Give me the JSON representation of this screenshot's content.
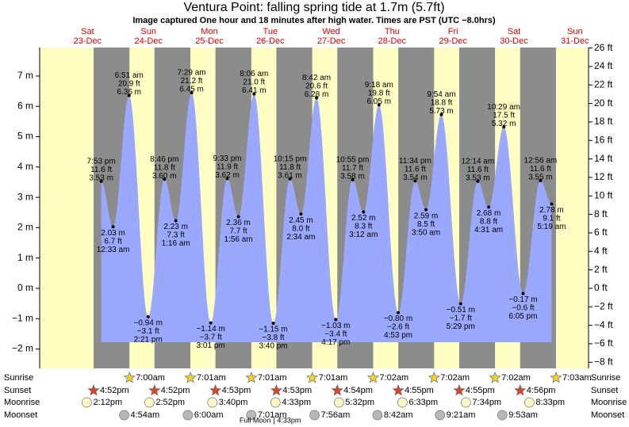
{
  "chart_data": {
    "type": "tide",
    "title": "Ventura Point: falling  spring tide at 1.7m (5.7ft)",
    "subtitle": "Image captured One hour and 18 minutes after high water. Times are PST (UTC −8.0hrs)",
    "ylim": [
      -2.64,
      7.94
    ],
    "yticks": [
      {
        "value": -2,
        "label": "−2 m"
      },
      {
        "value": -1,
        "label": "−1 m"
      },
      {
        "value": 0,
        "label": "0 m"
      },
      {
        "value": 1,
        "label": "1 m"
      },
      {
        "value": 2,
        "label": "2 m"
      },
      {
        "value": 3,
        "label": "3 m"
      },
      {
        "value": 4,
        "label": "4 m"
      },
      {
        "value": 5,
        "label": "5 m"
      },
      {
        "value": 6,
        "label": "6 m"
      },
      {
        "value": 7,
        "label": "7 m"
      }
    ],
    "y2lim": [
      -8.66,
      26.05
    ],
    "y2ticks": [
      {
        "value": -8,
        "label": "−8 ft"
      },
      {
        "value": -6,
        "label": "−6 ft"
      },
      {
        "value": -4,
        "label": "−4 ft"
      },
      {
        "value": -2,
        "label": "−2 ft"
      },
      {
        "value": 0,
        "label": "0 ft"
      },
      {
        "value": 2,
        "label": "2 ft"
      },
      {
        "value": 4,
        "label": "4 ft"
      },
      {
        "value": 6,
        "label": "6 ft"
      },
      {
        "value": 8,
        "label": "8 ft"
      },
      {
        "value": 10,
        "label": "10 ft"
      },
      {
        "value": 12,
        "label": "12 ft"
      },
      {
        "value": 14,
        "label": "14 ft"
      },
      {
        "value": 16,
        "label": "16 ft"
      },
      {
        "value": 18,
        "label": "18 ft"
      },
      {
        "value": 20,
        "label": "20 ft"
      },
      {
        "value": 22,
        "label": "22 ft"
      },
      {
        "value": 24,
        "label": "24 ft"
      },
      {
        "value": 26,
        "label": "26 ft"
      }
    ],
    "rows": [
      "Sunrise",
      "Sunset",
      "Moonrise",
      "Moonset"
    ],
    "days": [
      {
        "weekday": "Sat",
        "date": "23‑Dec",
        "tides": [
          {
            "time": "7:53 pm",
            "value": 3.53,
            "ft": "11.6 ft",
            "m": "3.53 m"
          }
        ],
        "sunrise": null,
        "sunset": "4:52pm",
        "moonrise": "2:12pm",
        "moonset": null
      },
      {
        "weekday": "Sun",
        "date": "24‑Dec",
        "tides": [
          {
            "time": "12:33 am",
            "value": 2.03,
            "ft": "6.7 ft",
            "m": "2.03 m"
          },
          {
            "time": "6:51 am",
            "value": 6.36,
            "ft": "20.9 ft",
            "m": "6.36 m"
          },
          {
            "time": "2:21 pm",
            "value": -0.94,
            "ft": "−3.1 ft",
            "m": "−0.94 m"
          },
          {
            "time": "8:46 pm",
            "value": 3.6,
            "ft": "11.8 ft",
            "m": "3.60 m"
          }
        ],
        "sunrise": "7:00am",
        "sunset": "4:52pm",
        "moonrise": "2:52pm",
        "moonset": "4:54am"
      },
      {
        "weekday": "Mon",
        "date": "25‑Dec",
        "tides": [
          {
            "time": "1:16 am",
            "value": 2.23,
            "ft": "7.3 ft",
            "m": "2.23 m"
          },
          {
            "time": "7:29 am",
            "value": 6.45,
            "ft": "21.2 ft",
            "m": "6.45 m"
          },
          {
            "time": "3:01 pm",
            "value": -1.14,
            "ft": "−3.7 ft",
            "m": "−1.14 m"
          },
          {
            "time": "9:33 pm",
            "value": 3.62,
            "ft": "11.9 ft",
            "m": "3.62 m"
          }
        ],
        "sunrise": "7:01am",
        "sunset": "4:53pm",
        "moonrise": "3:40pm",
        "moonset": "6:00am"
      },
      {
        "weekday": "Tue",
        "date": "26‑Dec",
        "tides": [
          {
            "time": "1:56 am",
            "value": 2.36,
            "ft": "7.7 ft",
            "m": "2.36 m"
          },
          {
            "time": "8:06 am",
            "value": 6.41,
            "ft": "21.0 ft",
            "m": "6.41 m"
          },
          {
            "time": "3:40 pm",
            "value": -1.15,
            "ft": "−3.8 ft",
            "m": "−1.15 m"
          },
          {
            "time": "10:15 pm",
            "value": 3.61,
            "ft": "11.8 ft",
            "m": "3.61 m"
          }
        ],
        "sunrise": "7:01am",
        "sunset": "4:53pm",
        "moonrise": "4:33pm",
        "moonset": "7:01am",
        "phase": "Full Moon",
        "phase_time": "4:33pm"
      },
      {
        "weekday": "Wed",
        "date": "27‑Dec",
        "tides": [
          {
            "time": "2:34 am",
            "value": 2.45,
            "ft": "8.0 ft",
            "m": "2.45 m"
          },
          {
            "time": "8:42 am",
            "value": 6.28,
            "ft": "20.6 ft",
            "m": "6.28 m"
          },
          {
            "time": "4:17 pm",
            "value": -1.03,
            "ft": "−3.4 ft",
            "m": "−1.03 m"
          },
          {
            "time": "10:55 pm",
            "value": 3.58,
            "ft": "11.7 ft",
            "m": "3.58 m"
          }
        ],
        "sunrise": "7:01am",
        "sunset": "4:54pm",
        "moonrise": "5:32pm",
        "moonset": "7:56am"
      },
      {
        "weekday": "Thu",
        "date": "28‑Dec",
        "tides": [
          {
            "time": "3:12 am",
            "value": 2.52,
            "ft": "8.3 ft",
            "m": "2.52 m"
          },
          {
            "time": "9:18 am",
            "value": 6.05,
            "ft": "19.8 ft",
            "m": "6.05 m"
          },
          {
            "time": "4:53 pm",
            "value": -0.8,
            "ft": "−2.6 ft",
            "m": "−0.80 m"
          },
          {
            "time": "11:34 pm",
            "value": 3.54,
            "ft": "11.6 ft",
            "m": "3.54 m"
          }
        ],
        "sunrise": "7:02am",
        "sunset": "4:55pm",
        "moonrise": "6:33pm",
        "moonset": "8:42am"
      },
      {
        "weekday": "Fri",
        "date": "29‑Dec",
        "tides": [
          {
            "time": "3:50 am",
            "value": 2.59,
            "ft": "8.5 ft",
            "m": "2.59 m"
          },
          {
            "time": "9:54 am",
            "value": 5.73,
            "ft": "18.8 ft",
            "m": "5.73 m"
          },
          {
            "time": "5:29 pm",
            "value": -0.51,
            "ft": "−1.7 ft",
            "m": "−0.51 m"
          }
        ],
        "sunrise": "7:02am",
        "sunset": "4:55pm",
        "moonrise": "7:34pm",
        "moonset": "9:21am"
      },
      {
        "weekday": "Sat",
        "date": "30‑Dec",
        "tides": [
          {
            "time": "12:14 am",
            "value": 3.53,
            "ft": "11.6 ft",
            "m": "3.53 m"
          },
          {
            "time": "4:31 am",
            "value": 2.68,
            "ft": "8.8 ft",
            "m": "2.68 m"
          },
          {
            "time": "10:29 am",
            "value": 5.32,
            "ft": "17.5 ft",
            "m": "5.32 m"
          },
          {
            "time": "6:05 pm",
            "value": -0.17,
            "ft": "−0.6 ft",
            "m": "−0.17 m"
          }
        ],
        "sunrise": "7:02am",
        "sunset": "4:56pm",
        "moonrise": "8:33pm",
        "moonset": "9:53am"
      },
      {
        "weekday": "Sun",
        "date": "31‑Dec",
        "tides": [
          {
            "time": "12:56 am",
            "value": 3.55,
            "ft": "11.6 ft",
            "m": "3.55 m"
          },
          {
            "time": "5:19 am",
            "value": 2.78,
            "ft": "9.1 ft",
            "m": "2.78 m"
          }
        ],
        "sunrise": "7:03am",
        "sunset": null,
        "moonrise": null,
        "moonset": null
      }
    ]
  }
}
